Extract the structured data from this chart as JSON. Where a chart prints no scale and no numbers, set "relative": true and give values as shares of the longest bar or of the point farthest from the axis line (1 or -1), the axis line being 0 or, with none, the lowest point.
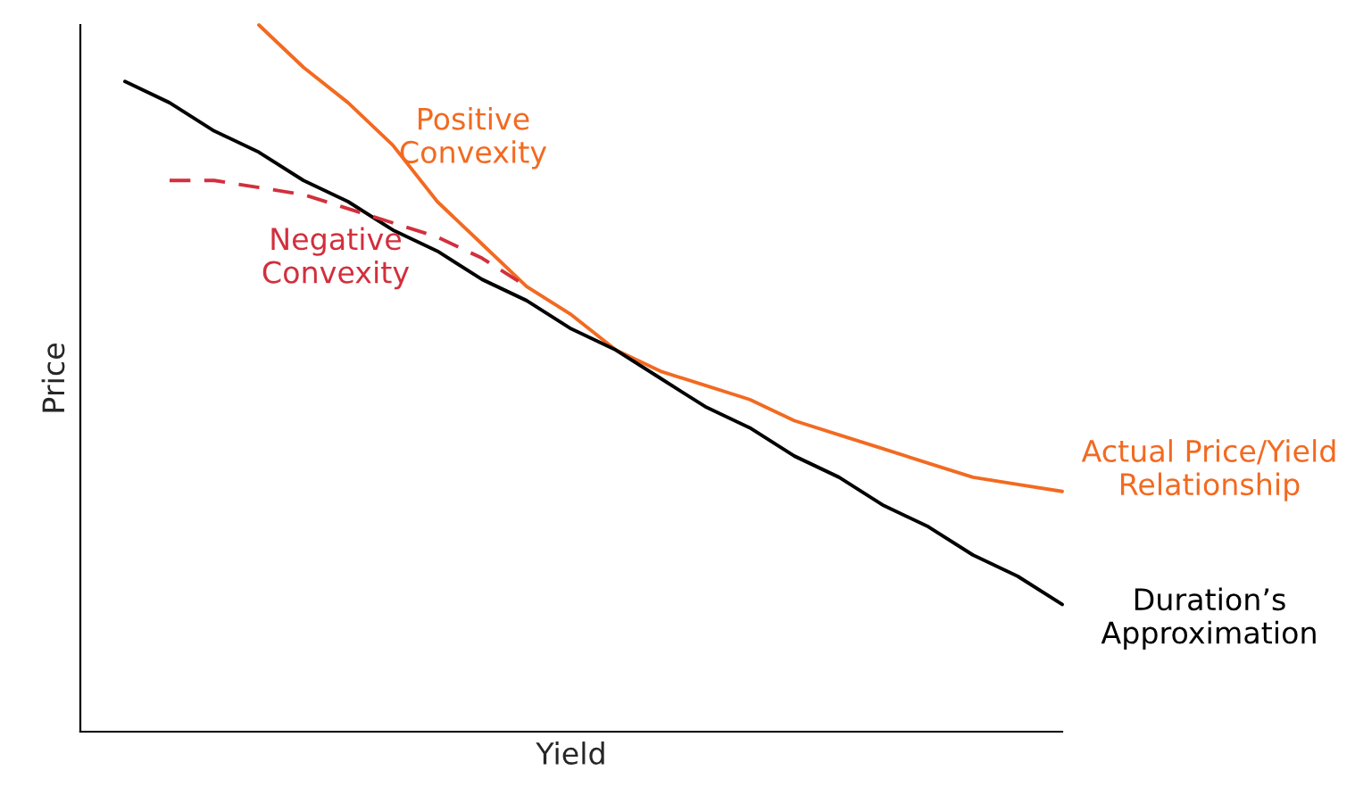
{
  "chart_data": {
    "type": "line",
    "relative": true,
    "xlabel": "Yield",
    "ylabel": "Price",
    "marker": "none",
    "categories": [
      null,
      null,
      null,
      null,
      null,
      null,
      null,
      null,
      null,
      null,
      null,
      null,
      null,
      null,
      null,
      null,
      null,
      null,
      null,
      null,
      null,
      null,
      null
    ],
    "series": [
      {
        "name": "Actual Price/Yield\nRelationship",
        "color": "#f26a21",
        "line_style": "solid",
        "values": [
          null,
          null,
          null,
          null,
          1.0,
          0.94,
          0.89,
          0.83,
          0.75,
          0.69,
          0.63,
          0.59,
          0.54,
          0.51,
          0.49,
          0.47,
          0.44,
          0.42,
          0.4,
          0.38,
          0.36,
          0.35,
          0.34
        ]
      },
      {
        "name": "Duration’s\nApproximation",
        "color": "#000000",
        "line_style": "solid",
        "values": [
          null,
          0.92,
          0.89,
          0.85,
          0.82,
          0.78,
          0.75,
          0.71,
          0.68,
          0.64,
          0.61,
          0.57,
          0.54,
          0.5,
          0.46,
          0.43,
          0.39,
          0.36,
          0.32,
          0.29,
          0.25,
          0.22,
          0.18
        ]
      },
      {
        "name": "Negative\nConvexity",
        "color": "#d22f3c",
        "line_style": "dashed",
        "values": [
          null,
          null,
          0.78,
          0.78,
          0.77,
          0.76,
          0.74,
          0.72,
          0.7,
          0.67,
          0.63,
          null,
          null,
          null,
          null,
          null,
          null,
          null,
          null,
          null,
          null,
          null,
          null
        ]
      }
    ],
    "annotations": [
      "Positive\nConvexity"
    ]
  }
}
